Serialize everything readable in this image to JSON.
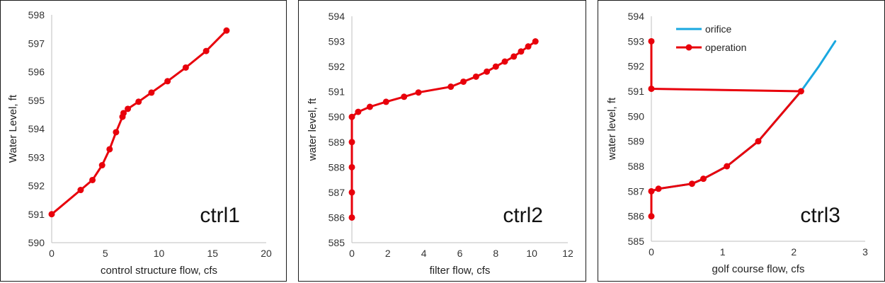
{
  "chart_data": [
    {
      "type": "line",
      "annotation": "ctrl1",
      "xlabel": "control structure flow, cfs",
      "ylabel": "Water Level, ft",
      "xlim": [
        0,
        20
      ],
      "ylim": [
        590,
        598
      ],
      "xticks": [
        "0",
        "5",
        "10",
        "15",
        "20"
      ],
      "yticks": [
        "590",
        "591",
        "592",
        "593",
        "594",
        "595",
        "596",
        "597",
        "598"
      ],
      "grid": false,
      "series": [
        {
          "color": "#e8000b",
          "markers": true,
          "x": [
            0,
            2.7,
            3.8,
            4.7,
            5.4,
            6.0,
            6.6,
            6.7,
            7.1,
            8.1,
            9.3,
            10.8,
            12.5,
            14.4,
            16.3
          ],
          "y": [
            591.0,
            591.85,
            592.2,
            592.72,
            593.28,
            593.88,
            594.42,
            594.55,
            594.7,
            594.95,
            595.27,
            595.67,
            596.15,
            596.73,
            597.45
          ]
        }
      ]
    },
    {
      "type": "line",
      "annotation": "ctrl2",
      "xlabel": "filter flow, cfs",
      "ylabel": "water level, ft",
      "xlim": [
        0,
        12
      ],
      "ylim": [
        585,
        594
      ],
      "xticks": [
        "0",
        "2",
        "4",
        "6",
        "8",
        "10",
        "12"
      ],
      "yticks": [
        "585",
        "586",
        "587",
        "588",
        "589",
        "590",
        "591",
        "592",
        "593",
        "594"
      ],
      "grid": false,
      "series": [
        {
          "color": "#e8000b",
          "markers": true,
          "x": [
            0,
            0,
            0,
            0,
            0,
            0.35,
            1.0,
            1.9,
            2.9,
            3.7,
            5.5,
            6.2,
            6.9,
            7.5,
            8.0,
            8.5,
            9.0,
            9.4,
            9.8,
            10.2
          ],
          "y": [
            586,
            587,
            588,
            589,
            590,
            590.2,
            590.4,
            590.6,
            590.8,
            590.97,
            591.2,
            591.4,
            591.6,
            591.8,
            592.0,
            592.2,
            592.4,
            592.6,
            592.8,
            593.0
          ]
        }
      ]
    },
    {
      "type": "line",
      "annotation": "ctrl3",
      "xlabel": "golf course flow, cfs",
      "ylabel": "water level, ft",
      "xlim": [
        0,
        3
      ],
      "ylim": [
        585,
        594
      ],
      "xticks": [
        "0",
        "1",
        "2",
        "3"
      ],
      "yticks": [
        "585",
        "586",
        "587",
        "588",
        "589",
        "590",
        "591",
        "592",
        "593",
        "594"
      ],
      "grid": false,
      "legend": "top-left",
      "series": [
        {
          "name": "orifice",
          "color": "#1aa8e0",
          "markers": false,
          "x": [
            0,
            0.1,
            0.57,
            0.73,
            1.06,
            1.5,
            1.8,
            2.1,
            2.35,
            2.58
          ],
          "y": [
            587.0,
            587.1,
            587.3,
            587.5,
            588.0,
            589.0,
            590.0,
            591.0,
            592.0,
            593.0
          ]
        },
        {
          "name": "operation",
          "color": "#e8000b",
          "markers": true,
          "x": [
            0,
            0,
            0,
            2.1,
            1.5,
            1.06,
            0.73,
            0.57,
            0.1,
            0,
            0
          ],
          "y": [
            593.0,
            592.0,
            591.1,
            591.0,
            589.0,
            588.0,
            587.5,
            587.3,
            587.1,
            587.0,
            586.0
          ],
          "marker_skip": [
            1
          ]
        }
      ]
    }
  ]
}
